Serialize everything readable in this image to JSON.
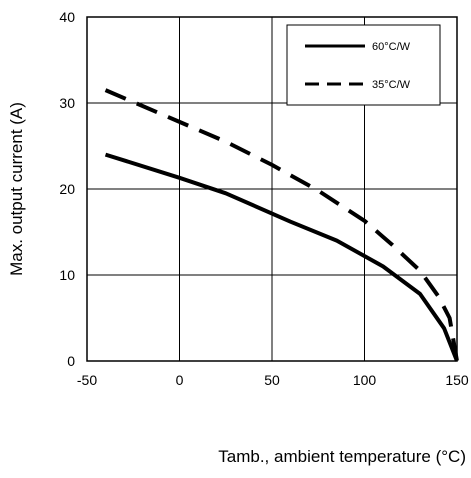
{
  "chart_data": {
    "type": "line",
    "xlabel": "Tamb., ambient temperature (°C)",
    "ylabel": "Max. output current (A)",
    "xlim": [
      -50,
      150
    ],
    "ylim": [
      0,
      40
    ],
    "xticks": [
      -50,
      0,
      50,
      100,
      150
    ],
    "yticks": [
      0,
      10,
      20,
      30,
      40
    ],
    "grid": true,
    "legend_position": "top-right",
    "series": [
      {
        "name": "60°C/W",
        "style": "solid",
        "color": "#000000",
        "x": [
          -40,
          0,
          25,
          60,
          85,
          110,
          130,
          143,
          150
        ],
        "y": [
          24.0,
          21.3,
          19.5,
          16.2,
          14.0,
          11.0,
          7.8,
          3.8,
          0
        ]
      },
      {
        "name": "35°C/W",
        "style": "dashed",
        "color": "#000000",
        "x": [
          -40,
          0,
          25,
          50,
          75,
          100,
          115,
          130,
          140,
          146,
          150
        ],
        "y": [
          31.5,
          27.8,
          25.5,
          22.8,
          19.8,
          16.3,
          13.5,
          10.5,
          7.5,
          5.0,
          0
        ]
      }
    ]
  }
}
